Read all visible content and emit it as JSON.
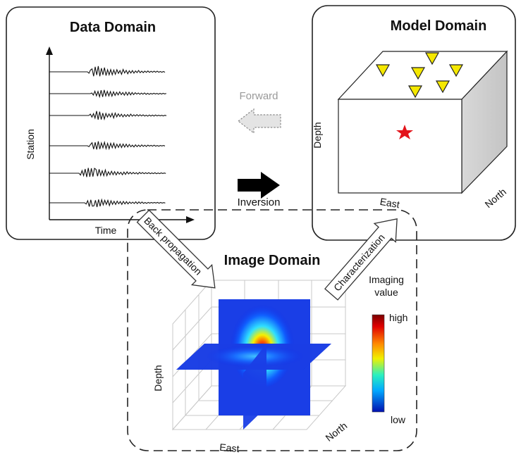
{
  "data_domain": {
    "title": "Data Domain",
    "y_label": "Station",
    "x_label": "Time",
    "traces": 6
  },
  "model_domain": {
    "title": "Model Domain",
    "depth_label": "Depth",
    "east_label": "East",
    "north_label": "North",
    "star_color": "#e3141b",
    "station_color": "#f5e800"
  },
  "image_domain": {
    "title": "Image Domain",
    "depth_label": "Depth",
    "east_label": "East",
    "north_label": "North",
    "colorbar": {
      "title_line1": "Imaging",
      "title_line2": "value",
      "high_label": "high",
      "low_label": "low"
    }
  },
  "arrows": {
    "forward": "Forward",
    "inversion": "Inversion",
    "back_propagation": "Back propagation",
    "characterization": "Characterization"
  }
}
